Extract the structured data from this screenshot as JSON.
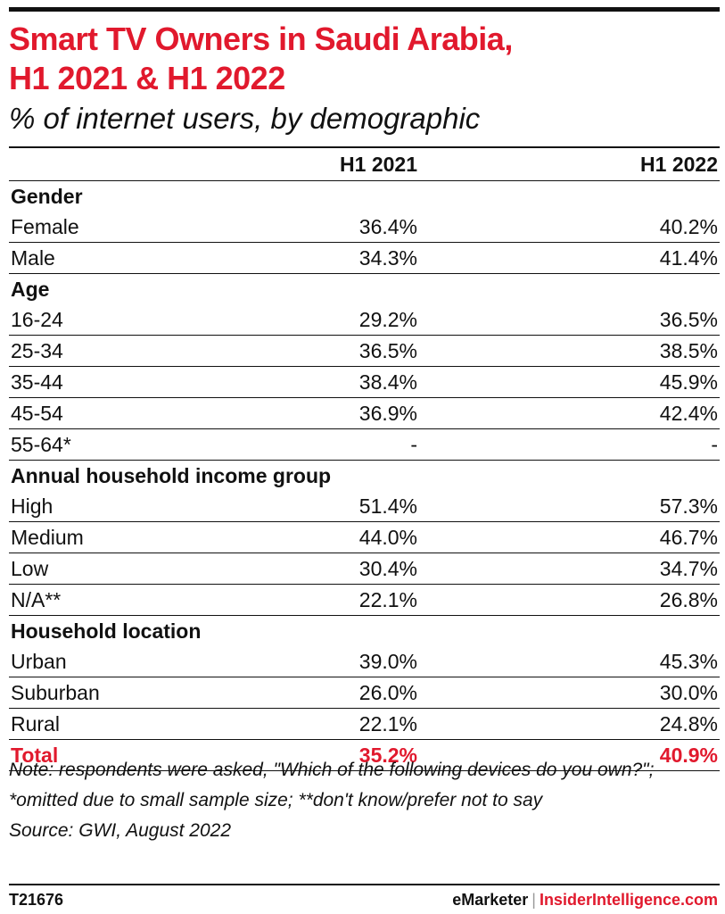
{
  "header": {
    "title_line1": "Smart TV Owners in Saudi Arabia,",
    "title_line2": "H1 2021 & H1 2022",
    "subtitle": "% of internet users, by demographic"
  },
  "colors": {
    "accent": "#e1192d",
    "text": "#111111"
  },
  "chart_data": {
    "type": "table",
    "columns": [
      "",
      "H1 2021",
      "H1 2022"
    ],
    "groups": [
      {
        "name": "Gender",
        "rows": [
          {
            "label": "Female",
            "h1_2021": "36.4%",
            "h1_2022": "40.2%"
          },
          {
            "label": "Male",
            "h1_2021": "34.3%",
            "h1_2022": "41.4%"
          }
        ]
      },
      {
        "name": "Age",
        "rows": [
          {
            "label": "16-24",
            "h1_2021": "29.2%",
            "h1_2022": "36.5%"
          },
          {
            "label": "25-34",
            "h1_2021": "36.5%",
            "h1_2022": "38.5%"
          },
          {
            "label": "35-44",
            "h1_2021": "38.4%",
            "h1_2022": "45.9%"
          },
          {
            "label": "45-54",
            "h1_2021": "36.9%",
            "h1_2022": "42.4%"
          },
          {
            "label": "55-64*",
            "h1_2021": "-",
            "h1_2022": "-"
          }
        ]
      },
      {
        "name": "Annual household income group",
        "rows": [
          {
            "label": "High",
            "h1_2021": "51.4%",
            "h1_2022": "57.3%"
          },
          {
            "label": "Medium",
            "h1_2021": "44.0%",
            "h1_2022": "46.7%"
          },
          {
            "label": "Low",
            "h1_2021": "30.4%",
            "h1_2022": "34.7%"
          },
          {
            "label": "N/A**",
            "h1_2021": "22.1%",
            "h1_2022": "26.8%"
          }
        ]
      },
      {
        "name": "Household location",
        "rows": [
          {
            "label": "Urban",
            "h1_2021": "39.0%",
            "h1_2022": "45.3%"
          },
          {
            "label": "Suburban",
            "h1_2021": "26.0%",
            "h1_2022": "30.0%"
          },
          {
            "label": "Rural",
            "h1_2021": "22.1%",
            "h1_2022": "24.8%"
          }
        ]
      }
    ],
    "total": {
      "label": "Total",
      "h1_2021": "35.2%",
      "h1_2022": "40.9%"
    }
  },
  "notes": {
    "note": "Note: respondents were asked, \"Which of the following devices do you own?\"; *omitted due to small sample size; **don't know/prefer not to say",
    "source": "Source: GWI, August 2022"
  },
  "footer": {
    "chart_id": "T21676",
    "brand_emarketer": "eMarketer",
    "brand_separator": "|",
    "brand_ii": "InsiderIntelligence.com"
  }
}
